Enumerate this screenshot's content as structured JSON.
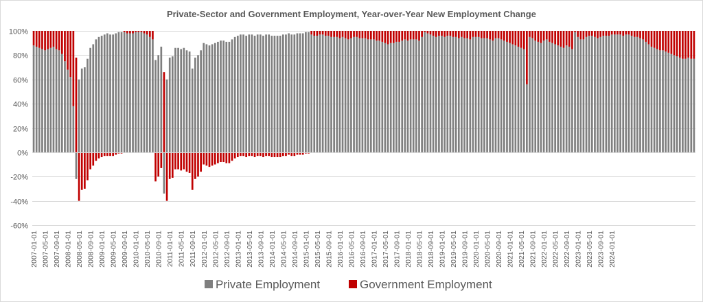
{
  "chart_data": {
    "type": "bar",
    "stacked": true,
    "title": "Private-Sector and Government Employment, Year-over-Year New Employment Change",
    "ylim": [
      -60,
      100
    ],
    "y_ticks": [
      100,
      80,
      60,
      40,
      20,
      0,
      -20,
      -40,
      -60
    ],
    "y_tick_labels": [
      "100%",
      "80%",
      "60%",
      "40%",
      "20%",
      "0%",
      "-20%",
      "-40%",
      "-60%"
    ],
    "x_tick_labels": [
      "2007-01",
      "2007-05",
      "2007-09",
      "2008-01",
      "2008-05",
      "2008-09",
      "2009-01",
      "2009-05",
      "2009-09",
      "2010-01",
      "2010-05",
      "2010-09",
      "2011-01",
      "2011-05",
      "2011-09",
      "2012-01",
      "2012-05",
      "2012-09",
      "2013-01",
      "2013-05",
      "2013-09",
      "2014-01",
      "2014-05",
      "2014-09",
      "2015-01",
      "2015-05",
      "2015-09",
      "2016-01",
      "2016-05",
      "2016-09",
      "2017-01",
      "2017-05",
      "2017-09",
      "2018-01",
      "2018-05",
      "2018-09",
      "2019-01",
      "2019-05",
      "2019-09",
      "2020-01",
      "2020-05",
      "2020-09",
      "2021-01",
      "2021-05",
      "2021-09",
      "2022-01",
      "2022-05",
      "2022-09",
      "2023-01",
      "2023-05",
      "2023-09",
      "2024-01"
    ],
    "x_tick_labels_full": [
      "2007-01-01",
      "2007-05-01",
      "2007-09-01",
      "2008-01-01",
      "2008-05-01",
      "2008-09-01",
      "2009-01-01",
      "2009-05-01",
      "2009-09-01",
      "2010-01-01",
      "2010-05-01",
      "2010-09-01",
      "2011-01-01",
      "2011-05-01",
      "2011-09-01",
      "2012-01-01",
      "2012-05-01",
      "2012-09-01",
      "2013-01-01",
      "2013-05-01",
      "2013-09-01",
      "2014-01-01",
      "2014-05-01",
      "2014-09-01",
      "2015-01-01",
      "2015-05-01",
      "2015-09-01",
      "2016-01-01",
      "2016-05-01",
      "2016-09-01",
      "2017-01-01",
      "2017-05-01",
      "2017-09-01",
      "2018-01-01",
      "2018-05-01",
      "2018-09-01",
      "2019-01-01",
      "2019-05-01",
      "2019-09-01",
      "2020-01-01",
      "2020-05-01",
      "2020-09-01",
      "2021-01-01",
      "2021-05-01",
      "2021-09-01",
      "2022-01-01",
      "2022-05-01",
      "2022-09-01",
      "2023-01-01",
      "2023-05-01",
      "2023-09-01",
      "2024-01-01"
    ],
    "months_start": "2007-01-01",
    "grid": true,
    "legend_position": "bottom",
    "series": [
      {
        "name": "Private Employment",
        "color": "#7f7f7f",
        "values": [
          88,
          87,
          86,
          85,
          84,
          85,
          86,
          87,
          85,
          84,
          81,
          75,
          68,
          62,
          38,
          -22,
          60,
          69,
          70,
          77,
          86,
          89,
          93,
          95,
          96,
          97,
          98,
          97,
          97,
          98,
          99,
          99,
          99,
          98,
          98,
          98,
          99,
          99,
          99,
          98,
          97,
          95,
          93,
          76,
          80,
          87,
          -34,
          60,
          78,
          79,
          86,
          86,
          85,
          86,
          84,
          83,
          69,
          78,
          80,
          84,
          90,
          89,
          88,
          89,
          90,
          91,
          92,
          92,
          91,
          91,
          93,
          95,
          96,
          97,
          97,
          96,
          97,
          97,
          96,
          97,
          97,
          96,
          97,
          97,
          96,
          96,
          96,
          96,
          97,
          97,
          98,
          97,
          97,
          98,
          98,
          98,
          99,
          99,
          97,
          96,
          96,
          97,
          97,
          96,
          96,
          95,
          95,
          95,
          94,
          95,
          94,
          93,
          94,
          95,
          95,
          94,
          94,
          94,
          93,
          93,
          93,
          92,
          92,
          91,
          90,
          89,
          90,
          90,
          91,
          91,
          92,
          93,
          92,
          93,
          93,
          93,
          92,
          95,
          99,
          98,
          97,
          96,
          95,
          96,
          96,
          95,
          96,
          96,
          95,
          95,
          94,
          95,
          94,
          94,
          93,
          95,
          95,
          95,
          94,
          94,
          94,
          93,
          92,
          94,
          94,
          93,
          92,
          91,
          90,
          89,
          88,
          87,
          86,
          85,
          56,
          95,
          94,
          92,
          91,
          90,
          92,
          93,
          91,
          90,
          89,
          88,
          87,
          86,
          88,
          87,
          85,
          99,
          95,
          93,
          93,
          95,
          96,
          96,
          95,
          94,
          95,
          96,
          96,
          96,
          97,
          97,
          97,
          97,
          96,
          97,
          97,
          96,
          95,
          95,
          94,
          93,
          91,
          89,
          87,
          86,
          85,
          84,
          84,
          83,
          82,
          81,
          80,
          79,
          78,
          77,
          77,
          78,
          77,
          77
        ]
      },
      {
        "name": "Government Employment",
        "color": "#c00000",
        "values": [
          12,
          13,
          14,
          15,
          16,
          15,
          14,
          13,
          15,
          16,
          19,
          25,
          32,
          38,
          62,
          78,
          -40,
          -31,
          -30,
          -23,
          -14,
          -11,
          -7,
          -5,
          -4,
          -3,
          -3,
          -3,
          -3,
          -2,
          -1,
          -1,
          1,
          2,
          2,
          2,
          1,
          1,
          1,
          2,
          3,
          5,
          7,
          -24,
          -20,
          -13,
          66,
          -40,
          -22,
          -21,
          -14,
          -14,
          -15,
          -14,
          -16,
          -17,
          -31,
          -22,
          -20,
          -16,
          -10,
          -11,
          -12,
          -11,
          -10,
          -9,
          -8,
          -8,
          -9,
          -9,
          -7,
          -5,
          -4,
          -3,
          -3,
          -4,
          -3,
          -3,
          -4,
          -3,
          -3,
          -4,
          -3,
          -3,
          -4,
          -4,
          -4,
          -4,
          -3,
          -3,
          -2,
          -3,
          -3,
          -2,
          -2,
          -2,
          -1,
          -1,
          3,
          4,
          4,
          3,
          3,
          4,
          4,
          5,
          5,
          5,
          6,
          5,
          6,
          7,
          6,
          5,
          5,
          6,
          6,
          6,
          7,
          7,
          7,
          8,
          8,
          9,
          10,
          11,
          10,
          10,
          9,
          9,
          8,
          7,
          8,
          7,
          7,
          7,
          8,
          5,
          1,
          2,
          3,
          4,
          5,
          4,
          4,
          5,
          4,
          4,
          5,
          5,
          6,
          5,
          6,
          6,
          7,
          5,
          5,
          5,
          6,
          6,
          6,
          7,
          8,
          6,
          6,
          7,
          8,
          9,
          10,
          11,
          12,
          13,
          14,
          15,
          44,
          5,
          6,
          8,
          9,
          10,
          8,
          7,
          9,
          10,
          11,
          12,
          13,
          14,
          12,
          13,
          15,
          1,
          5,
          7,
          7,
          5,
          4,
          4,
          5,
          6,
          5,
          4,
          4,
          4,
          3,
          3,
          3,
          3,
          4,
          3,
          3,
          4,
          5,
          5,
          6,
          7,
          9,
          11,
          13,
          14,
          15,
          16,
          16,
          17,
          18,
          19,
          20,
          21,
          22,
          23,
          23,
          22,
          23,
          23
        ]
      }
    ]
  }
}
